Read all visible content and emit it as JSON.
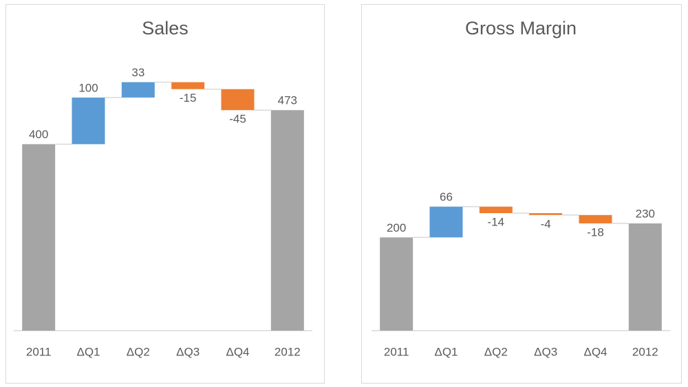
{
  "chart_data": [
    {
      "type": "waterfall",
      "title": "Sales",
      "categories": [
        "2011",
        "ΔQ1",
        "ΔQ2",
        "ΔQ3",
        "ΔQ4",
        "2012"
      ],
      "values": [
        400,
        100,
        33,
        -15,
        -45,
        473
      ],
      "colors": {
        "total": "#a5a5a5",
        "increase": "#5b9bd5",
        "decrease": "#ed7d31"
      },
      "ylim": [
        0,
        550
      ]
    },
    {
      "type": "waterfall",
      "title": "Gross Margin",
      "categories": [
        "2011",
        "ΔQ1",
        "ΔQ2",
        "ΔQ3",
        "ΔQ4",
        "2012"
      ],
      "values": [
        200,
        66,
        -14,
        -4,
        -18,
        230
      ],
      "colors": {
        "total": "#a5a5a5",
        "increase": "#5b9bd5",
        "decrease": "#ed7d31"
      },
      "ylim": [
        0,
        550
      ]
    }
  ]
}
